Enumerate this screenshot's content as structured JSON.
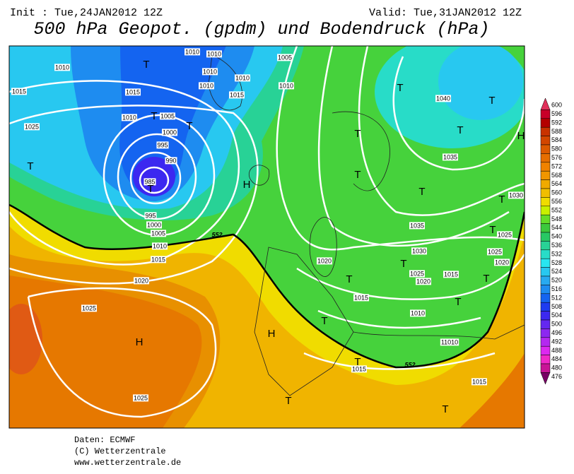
{
  "header": {
    "init": "Init : Tue,24JAN2012 12Z",
    "valid": "Valid: Tue,31JAN2012 12Z",
    "title": "500 hPa Geopot. (gpdm) und Bodendruck (hPa)"
  },
  "map": {
    "isobar_labels": [
      1010,
      1015,
      1015,
      1010,
      1025,
      1005,
      1000,
      995,
      990,
      985,
      995,
      1000,
      1005,
      1010,
      1015,
      1020,
      1025,
      1025,
      1010,
      1010,
      1015,
      1010,
      1005,
      1010,
      1010,
      1010,
      1040,
      1035,
      1030,
      1035,
      1030,
      1025,
      1025,
      1020,
      1025,
      1020,
      1020,
      1015,
      1015,
      1010,
      "11010",
      1015,
      1015
    ],
    "contour_labels": [
      552,
      552
    ],
    "pressure_centers": [
      "T",
      "T",
      "T",
      "T",
      "T",
      "T",
      "T",
      "T",
      "T",
      "T",
      "T",
      "T",
      "T",
      "T",
      "T",
      "T",
      "T",
      "T",
      "T",
      "T",
      "T",
      "H",
      "H",
      "H",
      "H"
    ]
  },
  "colorbar": {
    "levels": [
      600,
      596,
      592,
      588,
      584,
      580,
      576,
      572,
      568,
      564,
      560,
      556,
      552,
      548,
      544,
      540,
      536,
      532,
      528,
      524,
      520,
      516,
      512,
      508,
      504,
      500,
      496,
      492,
      488,
      484,
      480,
      476
    ],
    "colors": [
      "#e0305a",
      "#c80028",
      "#b40000",
      "#c83200",
      "#d24600",
      "#dc5a00",
      "#e66e00",
      "#f08200",
      "#f09600",
      "#f0aa00",
      "#f0be00",
      "#f0dc00",
      "#c8f000",
      "#64dc28",
      "#3cc83c",
      "#28c864",
      "#28d296",
      "#28dcc8",
      "#28e6f0",
      "#28c8f0",
      "#28aaf0",
      "#1e8cf0",
      "#1464f0",
      "#1e3cf0",
      "#3c28f0",
      "#6428f0",
      "#8c28f0",
      "#b428f0",
      "#dc28f0",
      "#f028c8",
      "#c81496",
      "#780064"
    ]
  },
  "footer": {
    "source": "Daten: ECMWF",
    "copyright": "(C) Wetterzentrale",
    "url": "www.wetterzentrale.de"
  }
}
